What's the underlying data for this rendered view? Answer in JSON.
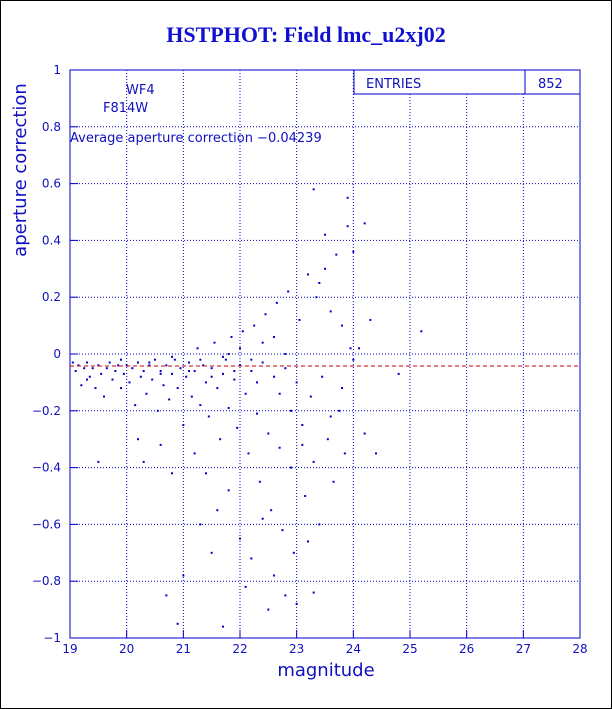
{
  "window": {
    "border": true
  },
  "title": "HSTPHOT: Field lmc_u2xj02",
  "annotations": {
    "chip": "WF4",
    "filter": "F814W",
    "average_text": "Average aperture correction −0.04239"
  },
  "stats_box": {
    "label": "ENTRIES",
    "value": "852"
  },
  "colors": {
    "axis": "#0000cc",
    "points": "#0000cc",
    "title": "#1010d0",
    "average_line": "#cc0000",
    "grid": "#0000cc"
  },
  "chart_data": {
    "type": "scatter",
    "title": "HSTPHOT: Field lmc_u2xj02",
    "xlabel": "magnitude",
    "ylabel": "aperture correction",
    "xlim": [
      19,
      28
    ],
    "ylim": [
      -1,
      1
    ],
    "xticks": [
      19,
      20,
      21,
      22,
      23,
      24,
      25,
      26,
      27,
      28
    ],
    "yticks": [
      -1,
      -0.8,
      -0.6,
      -0.4,
      -0.2,
      0,
      0.2,
      0.4,
      0.6,
      0.8,
      1
    ],
    "ytick_labels": [
      "−1",
      "−0.8",
      "−0.6",
      "−0.4",
      "−0.2",
      "0",
      "0.2",
      "0.4",
      "0.6",
      "0.8",
      "1"
    ],
    "grid": "dotted",
    "reference_line": {
      "y": -0.04239,
      "style": "dashed",
      "color": "#cc0000"
    },
    "entries": 852,
    "series": [
      {
        "points": [
          [
            19.05,
            -0.03
          ],
          [
            19.1,
            -0.06
          ],
          [
            19.15,
            -0.04
          ],
          [
            19.2,
            -0.11
          ],
          [
            19.25,
            -0.05
          ],
          [
            19.3,
            -0.03
          ],
          [
            19.35,
            -0.08
          ],
          [
            19.4,
            -0.05
          ],
          [
            19.45,
            -0.12
          ],
          [
            19.5,
            -0.04
          ],
          [
            19.55,
            -0.07
          ],
          [
            19.6,
            -0.15
          ],
          [
            19.65,
            -0.05
          ],
          [
            19.7,
            -0.03
          ],
          [
            19.75,
            -0.09
          ],
          [
            19.8,
            -0.06
          ],
          [
            19.85,
            -0.04
          ],
          [
            19.9,
            -0.12
          ],
          [
            19.95,
            -0.07
          ],
          [
            20.0,
            -0.04
          ],
          [
            20.05,
            -0.1
          ],
          [
            20.1,
            -0.05
          ],
          [
            20.15,
            -0.18
          ],
          [
            20.2,
            -0.03
          ],
          [
            20.25,
            -0.08
          ],
          [
            20.3,
            -0.06
          ],
          [
            20.35,
            -0.14
          ],
          [
            20.4,
            -0.04
          ],
          [
            20.45,
            -0.09
          ],
          [
            20.5,
            -0.02
          ],
          [
            20.55,
            -0.2
          ],
          [
            20.6,
            -0.06
          ],
          [
            20.65,
            -0.11
          ],
          [
            20.7,
            -0.04
          ],
          [
            20.75,
            -0.16
          ],
          [
            20.8,
            -0.07
          ],
          [
            20.85,
            -0.02
          ],
          [
            20.9,
            -0.12
          ],
          [
            20.95,
            -0.05
          ],
          [
            21.0,
            -0.25
          ],
          [
            21.05,
            -0.08
          ],
          [
            21.1,
            -0.03
          ],
          [
            21.15,
            -0.15
          ],
          [
            21.2,
            -0.06
          ],
          [
            21.25,
            0.02
          ],
          [
            21.3,
            -0.18
          ],
          [
            21.35,
            -0.04
          ],
          [
            21.4,
            -0.1
          ],
          [
            21.45,
            -0.22
          ],
          [
            21.5,
            -0.05
          ],
          [
            21.55,
            0.04
          ],
          [
            21.6,
            -0.12
          ],
          [
            21.65,
            -0.3
          ],
          [
            21.7,
            -0.07
          ],
          [
            21.75,
            -0.02
          ],
          [
            21.8,
            -0.19
          ],
          [
            21.85,
            0.06
          ],
          [
            21.9,
            -0.09
          ],
          [
            21.95,
            -0.26
          ],
          [
            22.0,
            -0.04
          ],
          [
            22.05,
            0.08
          ],
          [
            22.1,
            -0.14
          ],
          [
            22.15,
            -0.35
          ],
          [
            22.2,
            -0.06
          ],
          [
            22.25,
            0.1
          ],
          [
            22.3,
            -0.21
          ],
          [
            22.35,
            -0.45
          ],
          [
            22.4,
            -0.03
          ],
          [
            22.45,
            0.14
          ],
          [
            22.5,
            -0.28
          ],
          [
            22.55,
            -0.55
          ],
          [
            22.6,
            -0.08
          ],
          [
            22.65,
            0.18
          ],
          [
            22.7,
            -0.33
          ],
          [
            22.75,
            -0.62
          ],
          [
            22.8,
            -0.05
          ],
          [
            22.85,
            0.22
          ],
          [
            22.9,
            -0.4
          ],
          [
            22.95,
            -0.7
          ],
          [
            23.0,
            -0.1
          ],
          [
            23.05,
            0.12
          ],
          [
            23.1,
            -0.25
          ],
          [
            23.15,
            -0.5
          ],
          [
            23.2,
            0.28
          ],
          [
            23.25,
            -0.15
          ],
          [
            23.3,
            -0.38
          ],
          [
            23.35,
            0.2
          ],
          [
            23.4,
            -0.6
          ],
          [
            23.45,
            -0.08
          ],
          [
            23.5,
            0.3
          ],
          [
            23.55,
            -0.3
          ],
          [
            23.6,
            0.15
          ],
          [
            23.65,
            -0.45
          ],
          [
            23.7,
            0.35
          ],
          [
            23.75,
            -0.2
          ],
          [
            23.8,
            0.1
          ],
          [
            23.85,
            -0.35
          ],
          [
            23.9,
            0.45
          ],
          [
            23.95,
            0.02
          ],
          [
            21.4,
            -0.42
          ],
          [
            21.6,
            -0.55
          ],
          [
            21.8,
            -0.48
          ],
          [
            22.0,
            -0.65
          ],
          [
            22.2,
            -0.72
          ],
          [
            22.4,
            -0.58
          ],
          [
            22.6,
            -0.78
          ],
          [
            22.8,
            -0.85
          ],
          [
            23.0,
            -0.88
          ],
          [
            23.2,
            -0.66
          ],
          [
            21.2,
            -0.35
          ],
          [
            21.0,
            -0.78
          ],
          [
            20.9,
            -0.95
          ],
          [
            20.7,
            -0.85
          ],
          [
            21.3,
            -0.6
          ],
          [
            21.7,
            -0.96
          ],
          [
            22.5,
            -0.9
          ],
          [
            23.3,
            -0.84
          ],
          [
            22.1,
            -0.82
          ],
          [
            21.5,
            -0.7
          ],
          [
            20.3,
            -0.38
          ],
          [
            20.6,
            -0.32
          ],
          [
            20.2,
            -0.3
          ],
          [
            19.5,
            -0.38
          ],
          [
            20.8,
            -0.42
          ],
          [
            23.3,
            0.58
          ],
          [
            23.5,
            0.42
          ],
          [
            23.9,
            0.55
          ],
          [
            24.2,
            0.46
          ],
          [
            24.0,
            0.36
          ],
          [
            24.3,
            0.12
          ],
          [
            24.4,
            -0.35
          ],
          [
            24.8,
            -0.07
          ],
          [
            25.2,
            0.08
          ],
          [
            24.1,
            0.02
          ],
          [
            24.2,
            -0.28
          ],
          [
            24.0,
            -0.02
          ],
          [
            23.8,
            -0.12
          ],
          [
            23.6,
            -0.22
          ],
          [
            23.4,
            0.25
          ],
          [
            22.0,
            0.02
          ],
          [
            22.2,
            -0.02
          ],
          [
            22.4,
            0.04
          ],
          [
            22.6,
            0.06
          ],
          [
            22.8,
            0.0
          ],
          [
            21.1,
            -0.06
          ],
          [
            21.3,
            -0.02
          ],
          [
            21.5,
            -0.08
          ],
          [
            21.7,
            -0.01
          ],
          [
            21.9,
            -0.06
          ],
          [
            20.4,
            -0.03
          ],
          [
            20.6,
            -0.07
          ],
          [
            20.8,
            -0.01
          ],
          [
            19.9,
            -0.02
          ],
          [
            19.3,
            -0.09
          ],
          [
            22.3,
            -0.1
          ],
          [
            22.7,
            -0.14
          ],
          [
            22.9,
            -0.2
          ],
          [
            23.1,
            -0.32
          ],
          [
            21.8,
            0.0
          ]
        ]
      }
    ]
  }
}
